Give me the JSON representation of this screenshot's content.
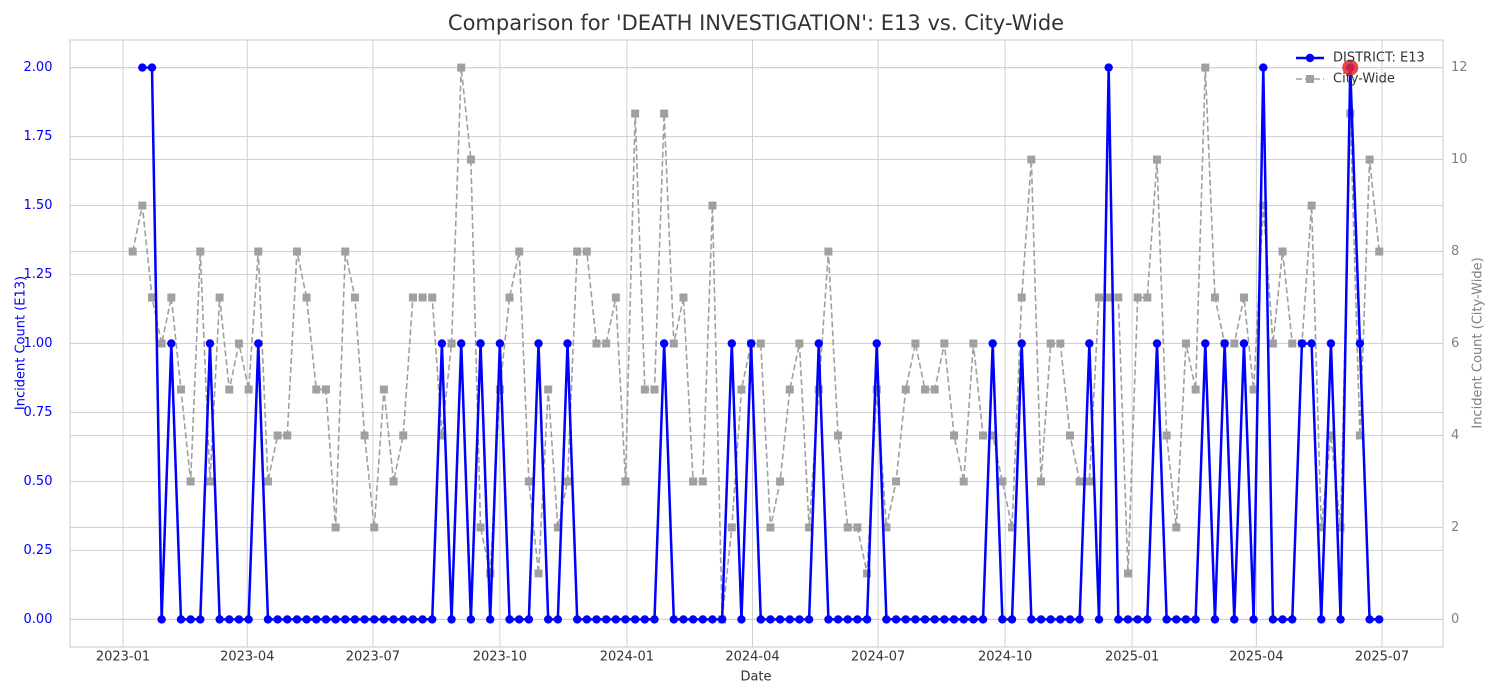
{
  "chart_data": {
    "type": "line",
    "title": "Comparison for 'DEATH INVESTIGATION': E13 vs. City-Wide",
    "x_label": "Date",
    "y_label": "Incident Count (E13)",
    "y2_label": "Incident Count (City-Wide)",
    "xticks": [
      "2023-01",
      "2023-04",
      "2023-07",
      "2023-10",
      "2024-01",
      "2024-04",
      "2024-07",
      "2024-10",
      "2025-01",
      "2025-04",
      "2025-07"
    ],
    "ylim": [
      -0.1,
      2.1
    ],
    "yticks": [
      {
        "value": 0,
        "label": "0.00"
      },
      {
        "value": 0.25,
        "label": "0.25"
      },
      {
        "value": 0.5,
        "label": "0.50"
      },
      {
        "value": 0.75,
        "label": "0.75"
      },
      {
        "value": 1,
        "label": "1.00"
      },
      {
        "value": 1.25,
        "label": "1.25"
      },
      {
        "value": 1.5,
        "label": "1.50"
      },
      {
        "value": 1.75,
        "label": "1.75"
      },
      {
        "value": 2,
        "label": "2.00"
      }
    ],
    "y2lim": [
      -0.6,
      12.6
    ],
    "y2ticks": [
      0,
      2,
      4,
      6,
      8,
      10,
      12
    ],
    "grid": true,
    "legend": "upper right",
    "highlight": {
      "index": 126,
      "color": "#e8262a"
    },
    "series": [
      {
        "name": "DISTRICT: E13",
        "color": "#0000ff",
        "marker": "circle",
        "dash": false,
        "values": [
          null,
          2,
          2,
          0,
          1,
          0,
          0,
          0,
          1,
          0,
          0,
          0,
          0,
          1,
          0,
          0,
          0,
          0,
          0,
          0,
          0,
          0,
          0,
          0,
          0,
          0,
          0,
          0,
          0,
          0,
          0,
          0,
          1,
          0,
          1,
          0,
          1,
          0,
          1,
          0,
          0,
          0,
          1,
          0,
          0,
          1,
          0,
          0,
          0,
          0,
          0,
          0,
          0,
          0,
          0,
          1,
          0,
          0,
          0,
          0,
          0,
          0,
          1,
          0,
          1,
          0,
          0,
          0,
          0,
          0,
          0,
          1,
          0,
          0,
          0,
          0,
          0,
          1,
          0,
          0,
          0,
          0,
          0,
          0,
          0,
          0,
          0,
          0,
          0,
          1,
          0,
          0,
          1,
          0,
          0,
          0,
          0,
          0,
          0,
          1,
          0,
          2,
          0,
          0,
          0,
          0,
          1,
          0,
          0,
          0,
          0,
          1,
          0,
          1,
          0,
          1,
          0,
          2,
          0,
          0,
          0,
          1,
          1,
          0,
          1,
          0,
          2,
          1,
          0,
          0
        ]
      },
      {
        "name": "City-Wide",
        "color": "#a0a0a0",
        "marker": "square",
        "dash": true,
        "axis": "y2",
        "values": [
          8,
          9,
          7,
          6,
          7,
          5,
          3,
          8,
          3,
          7,
          5,
          6,
          5,
          8,
          3,
          4,
          4,
          8,
          7,
          5,
          5,
          2,
          8,
          7,
          4,
          2,
          5,
          3,
          4,
          7,
          7,
          7,
          4,
          6,
          12,
          10,
          2,
          1,
          5,
          7,
          8,
          3,
          1,
          5,
          2,
          3,
          8,
          8,
          6,
          6,
          7,
          3,
          11,
          5,
          5,
          11,
          6,
          7,
          3,
          3,
          9,
          0,
          2,
          5,
          6,
          6,
          2,
          3,
          5,
          6,
          2,
          5,
          8,
          4,
          2,
          2,
          1,
          5,
          2,
          3,
          5,
          6,
          5,
          5,
          6,
          4,
          3,
          6,
          4,
          4,
          3,
          2,
          7,
          10,
          3,
          6,
          6,
          4,
          3,
          3,
          7,
          7,
          7,
          1,
          7,
          7,
          10,
          4,
          2,
          6,
          5,
          12,
          7,
          6,
          6,
          7,
          5,
          9,
          6,
          8,
          6,
          6,
          9,
          2,
          4,
          2,
          11,
          4,
          10,
          8
        ]
      }
    ]
  }
}
